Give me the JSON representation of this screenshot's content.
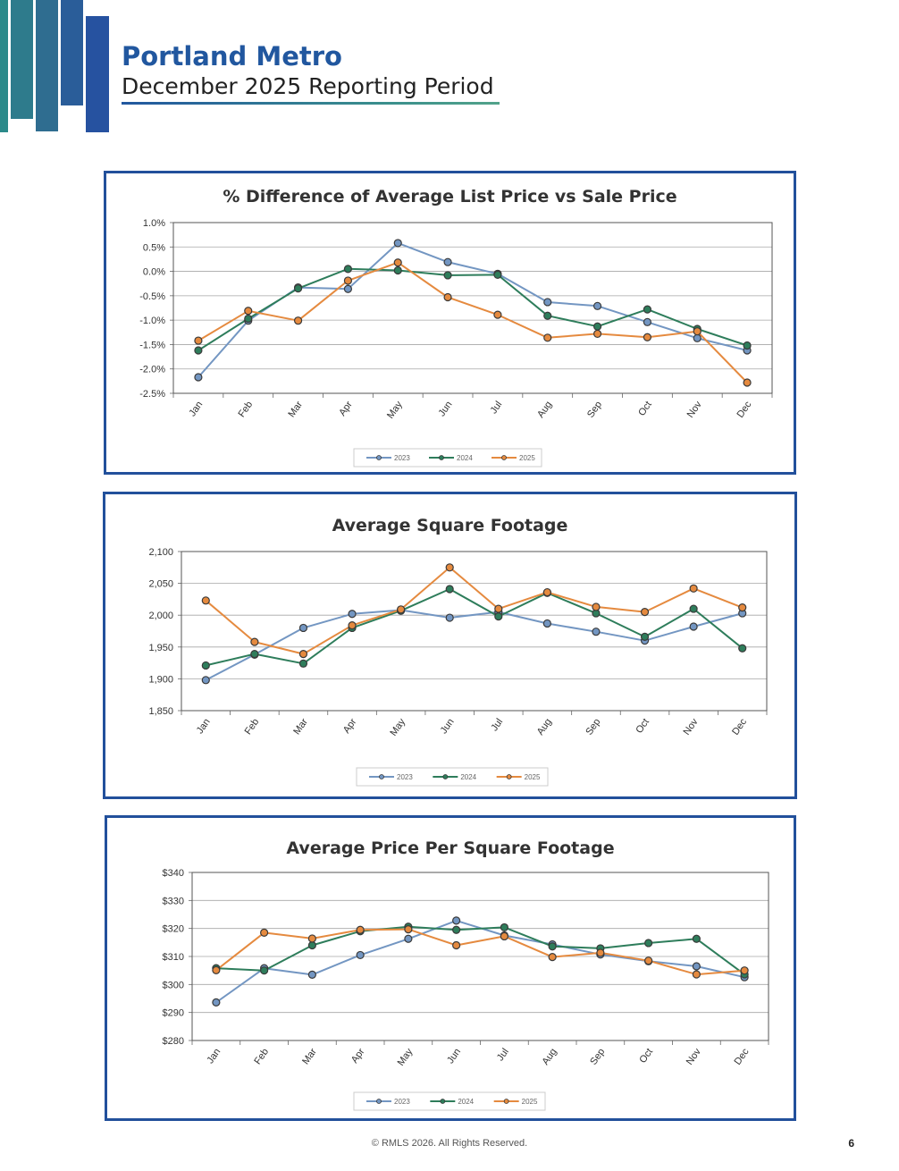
{
  "header": {
    "title": "Portland Metro",
    "subtitle": "December 2025 Reporting Period"
  },
  "footer": {
    "copyright": "© RMLS 2026. All Rights Reserved.",
    "page_number": "6"
  },
  "colors": {
    "brand": "#22509b",
    "series_2023": "#7396c2",
    "series_2024": "#2e7d5b",
    "series_2025": "#e58a3f"
  },
  "chart_data": [
    {
      "type": "line",
      "title": "% Difference of Average List Price vs Sale Price",
      "xlabel": "",
      "ylabel": "",
      "categories": [
        "Jan",
        "Feb",
        "Mar",
        "Apr",
        "May",
        "Jun",
        "Jul",
        "Aug",
        "Sep",
        "Oct",
        "Nov",
        "Dec"
      ],
      "ylim": [
        -2.5,
        1.0
      ],
      "yticks": [
        1.0,
        0.5,
        0.0,
        -0.5,
        -1.0,
        -1.5,
        -2.0,
        -2.5
      ],
      "ytick_labels": [
        "1.0%",
        "0.5%",
        "0.0%",
        "-0.5%",
        "-1.0%",
        "-1.5%",
        "-2.0%",
        "-2.5%"
      ],
      "grid": true,
      "legend": "bottom",
      "series": [
        {
          "name": "2023",
          "color": "#7396c2",
          "values": [
            -2.17,
            -1.01,
            -0.33,
            -0.36,
            0.58,
            0.19,
            -0.05,
            -0.63,
            -0.71,
            -1.04,
            -1.37,
            -1.62
          ]
        },
        {
          "name": "2024",
          "color": "#2e7d5b",
          "values": [
            -1.62,
            -0.97,
            -0.35,
            0.05,
            0.02,
            -0.08,
            -0.07,
            -0.91,
            -1.13,
            -0.78,
            -1.18,
            -1.52
          ]
        },
        {
          "name": "2025",
          "color": "#e58a3f",
          "values": [
            -1.42,
            -0.81,
            -1.01,
            -0.19,
            0.18,
            -0.53,
            -0.89,
            -1.36,
            -1.28,
            -1.35,
            -1.23,
            -2.28
          ]
        }
      ]
    },
    {
      "type": "line",
      "title": "Average Square Footage",
      "xlabel": "",
      "ylabel": "",
      "categories": [
        "Jan",
        "Feb",
        "Mar",
        "Apr",
        "May",
        "Jun",
        "Jul",
        "Aug",
        "Sep",
        "Oct",
        "Nov",
        "Dec"
      ],
      "ylim": [
        1850,
        2100
      ],
      "yticks": [
        2100,
        2050,
        2000,
        1950,
        1900,
        1850
      ],
      "ytick_labels": [
        "2,100",
        "2,050",
        "2,000",
        "1,950",
        "1,900",
        "1,850"
      ],
      "grid": true,
      "legend": "bottom",
      "series": [
        {
          "name": "2023",
          "color": "#7396c2",
          "values": [
            1898,
            1938,
            1980,
            2002,
            2008,
            1996,
            2005,
            1987,
            1974,
            1960,
            1982,
            2003
          ]
        },
        {
          "name": "2024",
          "color": "#2e7d5b",
          "values": [
            1921,
            1939,
            1924,
            1980,
            2007,
            2041,
            1998,
            2035,
            2003,
            1966,
            2010,
            1948
          ]
        },
        {
          "name": "2025",
          "color": "#e58a3f",
          "values": [
            2023,
            1958,
            1939,
            1984,
            2009,
            2075,
            2010,
            2036,
            2013,
            2005,
            2042,
            2012
          ]
        }
      ]
    },
    {
      "type": "line",
      "title": "Average Price Per Square Footage",
      "xlabel": "",
      "ylabel": "",
      "categories": [
        "Jan",
        "Feb",
        "Mar",
        "Apr",
        "May",
        "Jun",
        "Jul",
        "Aug",
        "Sep",
        "Oct",
        "Nov",
        "Dec"
      ],
      "ylim": [
        280,
        340
      ],
      "yticks": [
        340,
        330,
        320,
        310,
        300,
        290,
        280
      ],
      "ytick_labels": [
        "$340",
        "$330",
        "$320",
        "$310",
        "$300",
        "$290",
        "$280"
      ],
      "grid": true,
      "legend": "bottom",
      "series": [
        {
          "name": "2023",
          "color": "#7396c2",
          "values": [
            293.6,
            305.8,
            303.5,
            310.5,
            316.3,
            322.8,
            317.5,
            314.3,
            310.7,
            308.3,
            306.5,
            302.6
          ]
        },
        {
          "name": "2024",
          "color": "#2e7d5b",
          "values": [
            305.8,
            305.0,
            314.0,
            319.0,
            320.6,
            319.5,
            320.4,
            313.6,
            312.9,
            314.8,
            316.3,
            303.6
          ]
        },
        {
          "name": "2025",
          "color": "#e58a3f",
          "values": [
            305.1,
            318.5,
            316.4,
            319.5,
            319.7,
            314.0,
            317.2,
            309.8,
            311.3,
            308.5,
            303.6,
            305.0
          ]
        }
      ]
    }
  ]
}
